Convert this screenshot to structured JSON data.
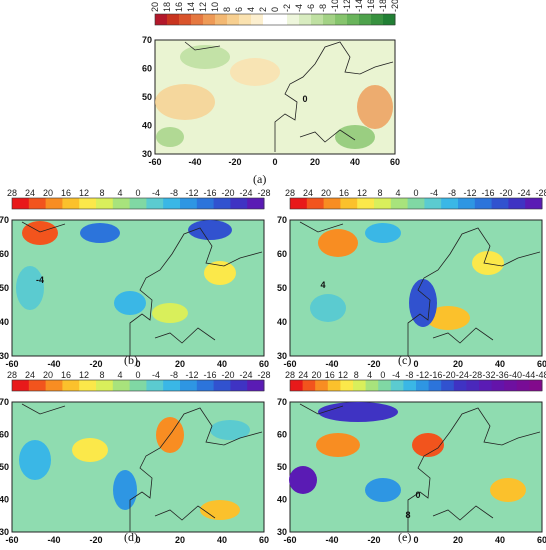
{
  "panels": [
    {
      "id": "a",
      "label": "(a)",
      "colorbar_labels": [
        "20",
        "18",
        "16",
        "14",
        "12",
        "10",
        "8",
        "6",
        "4",
        "2",
        "0",
        "-2",
        "-4",
        "-6",
        "-8",
        "-10",
        "-12",
        "-14",
        "-16",
        "-18",
        "-20"
      ],
      "colorbar_colors": [
        "#b2182b",
        "#c8341f",
        "#d9542c",
        "#e57840",
        "#ee9a56",
        "#f3b872",
        "#f7cf90",
        "#fae2b0",
        "#fcefcf",
        "#ffffff",
        "#ffffff",
        "#eef6dc",
        "#d8ecc0",
        "#bfe0a2",
        "#a3d285",
        "#86c46d",
        "#69b45b",
        "#4ea24c",
        "#37913f",
        "#217f34"
      ],
      "x_ticks": [
        "-60",
        "-40",
        "-20",
        "0",
        "20",
        "40",
        "60"
      ],
      "y_ticks": [
        "30",
        "40",
        "50",
        "60",
        "70"
      ],
      "contour_labels": [
        "0"
      ],
      "fill": "#eaf4d2"
    },
    {
      "id": "b",
      "label": "(b)",
      "colorbar_labels": [
        "28",
        "24",
        "20",
        "16",
        "12",
        "8",
        "4",
        "0",
        "-4",
        "-8",
        "-12",
        "-16",
        "-20",
        "-24",
        "-28"
      ],
      "colorbar_colors": [
        "#e8191a",
        "#f2541d",
        "#f88d22",
        "#fbc12c",
        "#fbe84a",
        "#d9ef5b",
        "#a8e37c",
        "#80d8a4",
        "#5bcbd0",
        "#3ab7e6",
        "#2e96e3",
        "#2c74db",
        "#3152cf",
        "#3f33c3",
        "#5a1bb4"
      ],
      "x_ticks": [
        "-60",
        "-40",
        "-20",
        "0",
        "20",
        "40",
        "60"
      ],
      "y_ticks": [
        "30",
        "40",
        "50",
        "60",
        "70"
      ],
      "contour_labels": [
        "-4"
      ],
      "fill": "#8fdcb0"
    },
    {
      "id": "c",
      "label": "(c)",
      "colorbar_labels": [
        "28",
        "24",
        "20",
        "16",
        "12",
        "8",
        "4",
        "0",
        "-4",
        "-8",
        "-12",
        "-16",
        "-20",
        "-24",
        "-28"
      ],
      "colorbar_colors": [
        "#e8191a",
        "#f2541d",
        "#f88d22",
        "#fbc12c",
        "#fbe84a",
        "#d9ef5b",
        "#a8e37c",
        "#80d8a4",
        "#5bcbd0",
        "#3ab7e6",
        "#2e96e3",
        "#2c74db",
        "#3152cf",
        "#3f33c3",
        "#5a1bb4"
      ],
      "x_ticks": [
        "-60",
        "-40",
        "-20",
        "0",
        "20",
        "40",
        "60"
      ],
      "y_ticks": [
        "30",
        "40",
        "50",
        "60",
        "70"
      ],
      "contour_labels": [
        "4"
      ],
      "fill": "#8fdcb0"
    },
    {
      "id": "d",
      "label": "(d)",
      "colorbar_labels": [
        "28",
        "24",
        "20",
        "16",
        "12",
        "8",
        "4",
        "0",
        "-4",
        "-8",
        "-12",
        "-16",
        "-20",
        "-24",
        "-28"
      ],
      "colorbar_colors": [
        "#e8191a",
        "#f2541d",
        "#f88d22",
        "#fbc12c",
        "#fbe84a",
        "#d9ef5b",
        "#a8e37c",
        "#80d8a4",
        "#5bcbd0",
        "#3ab7e6",
        "#2e96e3",
        "#2c74db",
        "#3152cf",
        "#3f33c3",
        "#5a1bb4"
      ],
      "x_ticks": [
        "-60",
        "-40",
        "-20",
        "0",
        "20",
        "40",
        "60"
      ],
      "y_ticks": [
        "30",
        "40",
        "50",
        "60",
        "70"
      ],
      "contour_labels": [],
      "fill": "#8fdcb0"
    },
    {
      "id": "e",
      "label": "(e)",
      "colorbar_labels": [
        "28",
        "24",
        "20",
        "16",
        "12",
        "8",
        "4",
        "0",
        "-4",
        "-8",
        "-12",
        "-16",
        "-20",
        "-24",
        "-28",
        "-32",
        "-36",
        "-40",
        "-44",
        "-48"
      ],
      "colorbar_colors": [
        "#e8191a",
        "#f2541d",
        "#f88d22",
        "#fbc12c",
        "#fbe84a",
        "#d9ef5b",
        "#a8e37c",
        "#80d8a4",
        "#5bcbd0",
        "#3ab7e6",
        "#2e96e3",
        "#2c74db",
        "#3152cf",
        "#3f33c3",
        "#4a28bb",
        "#5a1bb4",
        "#6414aa",
        "#6e10a0",
        "#780c96",
        "#820a8c"
      ],
      "x_ticks": [
        "-60",
        "-40",
        "-20",
        "0",
        "20",
        "40",
        "60"
      ],
      "y_ticks": [
        "30",
        "40",
        "50",
        "60",
        "70"
      ],
      "contour_labels": [
        "0",
        "8"
      ],
      "fill": "#8fdcb0"
    }
  ]
}
